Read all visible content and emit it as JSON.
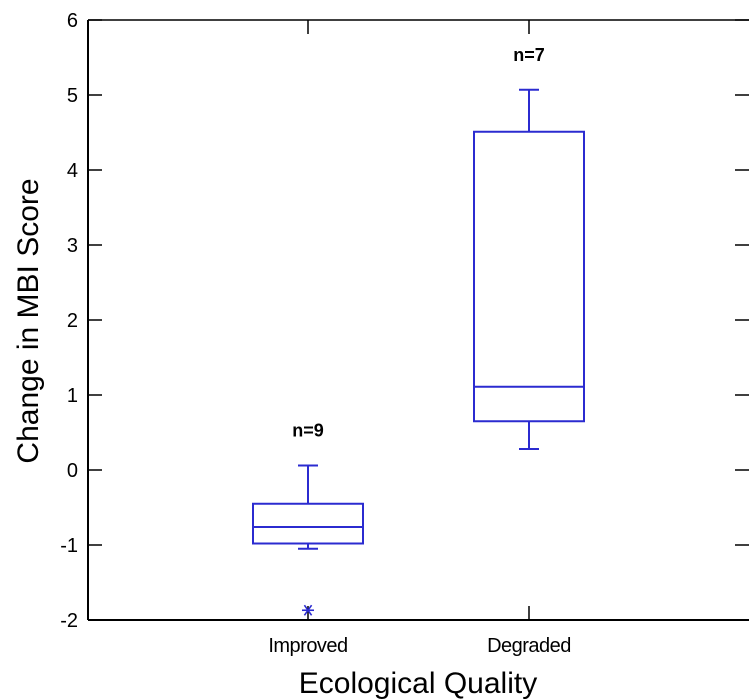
{
  "chart_data": {
    "type": "box",
    "title": "",
    "xlabel": "Ecological Quality",
    "ylabel": "Change in MBI Score",
    "ylim": [
      -2,
      6
    ],
    "yticks": [
      -2,
      -1,
      0,
      1,
      2,
      3,
      4,
      5,
      6
    ],
    "grid": false,
    "categories": [
      "Improved",
      "Degraded"
    ],
    "boxes": [
      {
        "category": "Improved",
        "n_label": "n=9",
        "whisker_low": -1.05,
        "q1": -0.98,
        "median": -0.76,
        "q3": -0.45,
        "whisker_high": 0.06,
        "outliers": [
          -1.87
        ]
      },
      {
        "category": "Degraded",
        "n_label": "n=7",
        "whisker_low": 0.28,
        "q1": 0.65,
        "median": 1.11,
        "q3": 4.51,
        "whisker_high": 5.07,
        "outliers": []
      }
    ],
    "colors": {
      "box": "#2b2bd0",
      "axis": "#000000"
    }
  }
}
